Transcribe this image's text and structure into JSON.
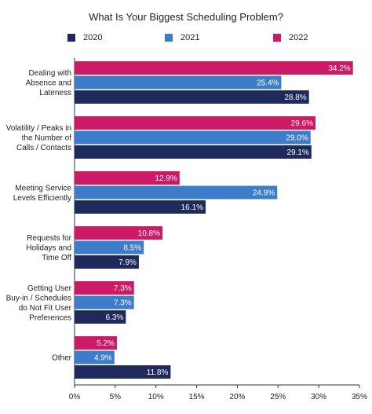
{
  "chart_data": {
    "type": "bar",
    "orientation": "horizontal",
    "title": "What Is Your Biggest Scheduling Problem?",
    "categories": [
      "Dealing with Absence and Lateness",
      "Volatility / Peaks in the Number of Calls / Contacts",
      "Meeting Service Levels Efficiently",
      "Requests for Holidays and Time Off",
      "Getting User Buy-in / Schedules do Not Fit User Preferences",
      "Other"
    ],
    "category_lines": [
      [
        "Dealing with",
        "Absence and",
        "Lateness"
      ],
      [
        "Volatility / Peaks in",
        "the Number of",
        "Calls / Contacts"
      ],
      [
        "Meeting Service",
        "Levels Efficiently"
      ],
      [
        "Requests for",
        "Holidays and",
        "Time Off"
      ],
      [
        "Getting User",
        "Buy-in / Schedules",
        "do Not Fit User",
        "Preferences"
      ],
      [
        "Other"
      ]
    ],
    "series": [
      {
        "name": "2022",
        "color": "#cc1a66",
        "values": [
          34.2,
          29.6,
          12.9,
          10.8,
          7.3,
          5.2
        ],
        "labels": [
          "34.2%",
          "29.6%",
          "12.9%",
          "10.8%",
          "7.3%",
          "5.2%"
        ]
      },
      {
        "name": "2021",
        "color": "#3d7cc9",
        "values": [
          25.4,
          29.0,
          24.9,
          8.5,
          7.3,
          4.9
        ],
        "labels": [
          "25.4%",
          "29.0%",
          "24.9%",
          "8.5%",
          "7.3%",
          "4.9%"
        ]
      },
      {
        "name": "2020",
        "color": "#1f2a5c",
        "values": [
          28.8,
          29.1,
          16.1,
          7.9,
          6.3,
          11.8
        ],
        "labels": [
          "28.8%",
          "29.1%",
          "16.1%",
          "7.9%",
          "6.3%",
          "11.8%"
        ]
      }
    ],
    "legend": [
      {
        "name": "2020",
        "color": "#1f2a5c"
      },
      {
        "name": "2021",
        "color": "#3d7cc9"
      },
      {
        "name": "2022",
        "color": "#cc1a66"
      }
    ],
    "xticks": [
      0,
      5,
      10,
      15,
      20,
      25,
      30,
      35
    ],
    "xtick_labels": [
      "0%",
      "5%",
      "10%",
      "15%",
      "20%",
      "25%",
      "30%",
      "35%"
    ],
    "xlim": [
      0,
      35
    ],
    "xlabel": "",
    "ylabel": "",
    "grid": false,
    "legend_position": "top"
  }
}
